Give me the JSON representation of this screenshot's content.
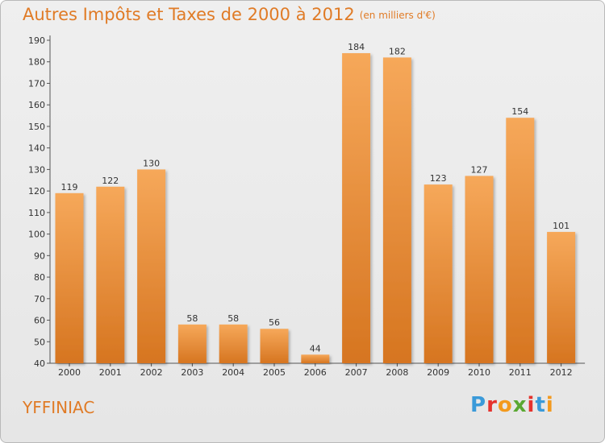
{
  "header": {
    "title": "Autres Impôts et Taxes de 2000 à 2012",
    "unit_note": "(en milliers d'€)"
  },
  "footer": {
    "commune": "YFFINIAC",
    "logo_text": "Proxiti",
    "logo_colors": [
      "#3a9ad9",
      "#e5322d",
      "#f39a1e",
      "#5aa832",
      "#e5322d",
      "#3a9ad9",
      "#f39a1e"
    ]
  },
  "colors": {
    "accent": "#e07b26",
    "bar_top": "#f6a85a",
    "bar_bottom": "#d67520"
  },
  "chart_data": {
    "type": "bar",
    "title": "Autres Impôts et Taxes de 2000 à 2012",
    "subtitle": "(en milliers d'€)",
    "xlabel": "",
    "ylabel": "",
    "categories": [
      "2000",
      "2001",
      "2002",
      "2003",
      "2004",
      "2005",
      "2006",
      "2007",
      "2008",
      "2009",
      "2010",
      "2011",
      "2012"
    ],
    "values": [
      119,
      122,
      130,
      58,
      58,
      56,
      44,
      184,
      182,
      123,
      127,
      154,
      101
    ],
    "data_labels": [
      "119",
      "122",
      "130",
      "58",
      "58",
      "56",
      "44",
      "184",
      "182",
      "123",
      "127",
      "154",
      "101"
    ],
    "ylim": [
      40,
      190
    ],
    "yticks": [
      40,
      50,
      60,
      70,
      80,
      90,
      100,
      110,
      120,
      130,
      140,
      150,
      160,
      170,
      180,
      190
    ],
    "grid": false,
    "legend": "none"
  }
}
